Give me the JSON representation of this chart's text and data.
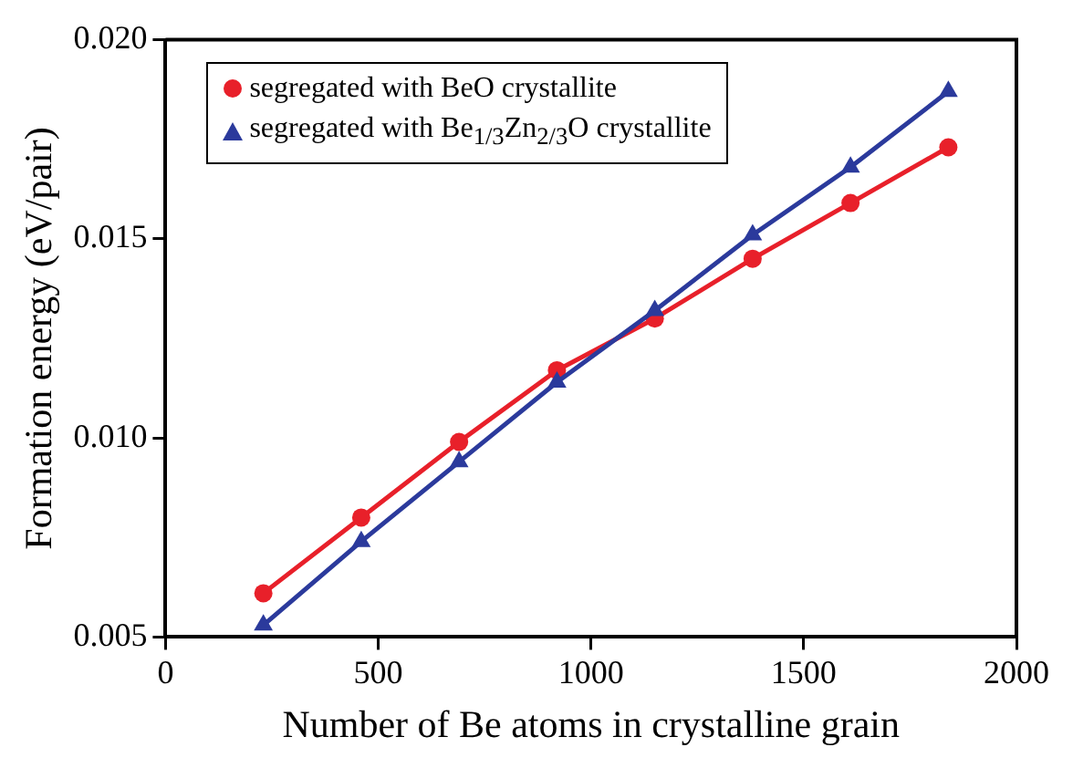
{
  "chart_data": {
    "type": "line",
    "xlabel": "Number of Be atoms in crystalline grain",
    "ylabel": "Formation energy (eV/pair)",
    "x": [
      230,
      460,
      690,
      920,
      1150,
      1380,
      1610,
      1840
    ],
    "series": [
      {
        "name": "segregated with BeO crystallite",
        "color": "#e8202a",
        "marker": "circle",
        "values": [
          0.0061,
          0.008,
          0.0099,
          0.0117,
          0.013,
          0.0145,
          0.0159,
          0.0173
        ]
      },
      {
        "name": "segregated with Be$_{1/3}$Zn$_{2/3}$O crystallite",
        "color": "#2b3a9c",
        "marker": "triangle",
        "values": [
          0.0053,
          0.0074,
          0.0094,
          0.0114,
          0.0132,
          0.0151,
          0.0168,
          0.0187
        ]
      }
    ],
    "xlim": [
      0,
      2000
    ],
    "xticks": [
      0,
      500,
      1000,
      1500,
      2000
    ],
    "ylim": [
      0.005,
      0.02
    ],
    "yticks": [
      0.005,
      {
        "value": 0.01,
        "label": "0.010"
      },
      0.015,
      {
        "value": 0.02,
        "label": "0.020"
      }
    ],
    "grid": false,
    "legend": "top left",
    "line_style": "solid"
  }
}
